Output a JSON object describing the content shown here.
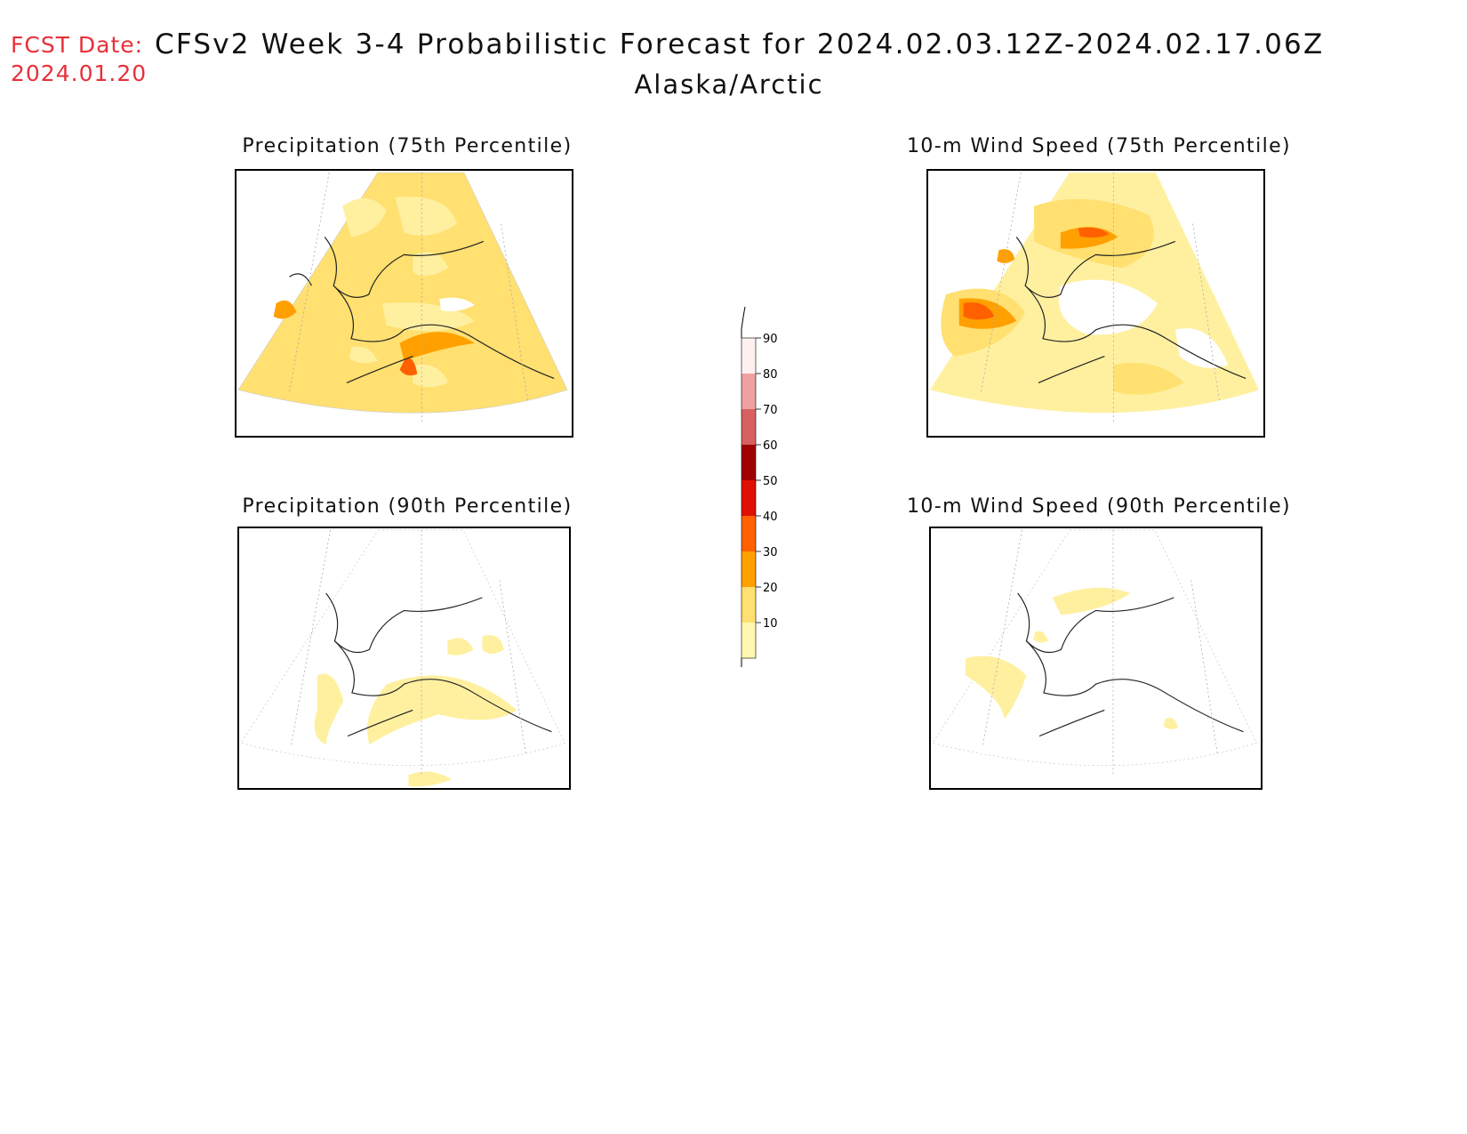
{
  "header": {
    "fcst_label": "FCST Date:",
    "fcst_date": "2024.01.20",
    "title": "CFSv2 Week 3-4 Probabilistic Forecast for 2024.02.03.12Z-2024.02.17.06Z",
    "region": "Alaska/Arctic"
  },
  "panels": [
    {
      "title": "Precipitation (75th Percentile)",
      "level": "high-precip"
    },
    {
      "title": "10-m Wind Speed (75th Percentile)",
      "level": "high-wind"
    },
    {
      "title": "Precipitation (90th Percentile)",
      "level": "low-precip"
    },
    {
      "title": "10-m Wind Speed (90th Percentile)",
      "level": "low-wind"
    }
  ],
  "colorbar": {
    "labels": [
      "90",
      "80",
      "70",
      "60",
      "50",
      "40",
      "30",
      "20",
      "10"
    ],
    "colors": [
      "#fff0f0",
      "#f0a0a0",
      "#d86060",
      "#a00000",
      "#e01000",
      "#ff6000",
      "#ffa000",
      "#ffe070",
      "#fff8b0"
    ]
  },
  "palette": {
    "light_yellow": "#fff8b0",
    "yellow": "#ffe070",
    "orange": "#ffa000",
    "dark_orange": "#ff6000"
  }
}
